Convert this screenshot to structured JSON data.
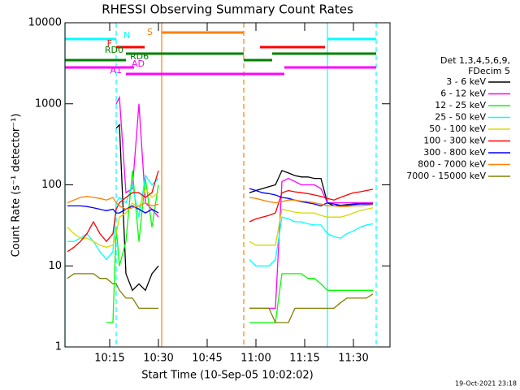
{
  "chart_data": {
    "type": "line",
    "title": "RHESSI Observing Summary Count Rates",
    "xlabel": "Start Time (10-Sep-05 10:02:02)",
    "ylabel": "Count Rate (s⁻¹ detector⁻¹)",
    "footer": "19-Oct-2021 23:18",
    "legend_title": [
      "Det 1,3,4,5,6,9,",
      "FDecim 5"
    ],
    "legend": "right",
    "ylog": true,
    "xlim": [
      1.25,
      101.25
    ],
    "xticks": [
      {
        "value": 15,
        "label": "10:15"
      },
      {
        "value": 30,
        "label": "10:30"
      },
      {
        "value": 45,
        "label": "10:45"
      },
      {
        "value": 60,
        "label": "11:00"
      },
      {
        "value": 75,
        "label": "11:15"
      },
      {
        "value": 90,
        "label": "11:30"
      }
    ],
    "ylim": [
      1,
      10000
    ],
    "yticks": [
      1,
      10,
      100,
      1000,
      10000
    ],
    "x": [
      2,
      4,
      6,
      8,
      10,
      12,
      14,
      16,
      17,
      18,
      20,
      22,
      24,
      26,
      28,
      30,
      44,
      58,
      60,
      62,
      64,
      66,
      68,
      70,
      72,
      74,
      76,
      78,
      80,
      82,
      84,
      86,
      88,
      90,
      92,
      94,
      96
    ],
    "series": [
      {
        "name": "3 - 6 keV",
        "color": "#000000",
        "values": [
          null,
          null,
          null,
          null,
          null,
          null,
          null,
          null,
          500,
          550,
          8,
          5,
          6,
          5,
          8,
          10,
          null,
          80,
          85,
          90,
          95,
          100,
          150,
          140,
          130,
          125,
          125,
          120,
          120,
          60,
          55,
          56,
          57,
          58,
          59,
          60,
          60
        ]
      },
      {
        "name": "6 - 12 keV",
        "color": "#ff00ff",
        "values": [
          null,
          null,
          null,
          null,
          null,
          null,
          null,
          null,
          1000,
          1200,
          80,
          90,
          1000,
          60,
          50,
          40,
          null,
          3,
          3,
          3,
          3,
          3,
          110,
          120,
          110,
          100,
          100,
          100,
          90,
          60,
          60,
          60,
          60,
          60,
          60,
          60,
          60
        ]
      },
      {
        "name": "12 - 25 keV",
        "color": "#00ff00",
        "values": [
          null,
          null,
          null,
          null,
          null,
          null,
          2,
          2,
          30,
          10,
          20,
          150,
          20,
          120,
          30,
          100,
          null,
          2,
          2,
          2,
          2,
          2,
          8,
          8,
          8,
          8,
          7,
          7,
          6,
          5,
          5,
          5,
          5,
          5,
          5,
          5,
          5
        ]
      },
      {
        "name": "25 - 50 keV",
        "color": "#00ffff",
        "values": [
          20,
          20,
          22,
          25,
          20,
          15,
          12,
          15,
          60,
          70,
          60,
          100,
          40,
          130,
          100,
          120,
          null,
          12,
          10,
          10,
          10,
          12,
          40,
          38,
          35,
          35,
          33,
          32,
          32,
          25,
          23,
          22,
          25,
          27,
          30,
          32,
          33
        ]
      },
      {
        "name": "50 - 100 keV",
        "color": "#d8d800",
        "values": [
          30,
          25,
          22,
          22,
          20,
          18,
          17,
          18,
          25,
          40,
          45,
          60,
          50,
          90,
          70,
          80,
          null,
          20,
          18,
          18,
          18,
          18,
          50,
          48,
          46,
          45,
          45,
          45,
          42,
          40,
          40,
          40,
          42,
          45,
          48,
          50,
          52
        ]
      },
      {
        "name": "100 - 300 keV",
        "color": "#ff0000",
        "values": [
          15,
          17,
          20,
          25,
          35,
          25,
          20,
          25,
          50,
          60,
          70,
          80,
          80,
          70,
          80,
          150,
          null,
          35,
          38,
          40,
          42,
          45,
          80,
          85,
          82,
          80,
          78,
          75,
          72,
          68,
          65,
          70,
          75,
          80,
          82,
          85,
          88
        ]
      },
      {
        "name": "300 - 800 keV",
        "color": "#0000ff",
        "values": [
          55,
          55,
          55,
          54,
          52,
          50,
          48,
          50,
          45,
          45,
          50,
          55,
          50,
          45,
          50,
          45,
          null,
          90,
          85,
          80,
          78,
          75,
          70,
          68,
          65,
          62,
          60,
          58,
          55,
          60,
          58,
          56,
          56,
          57,
          58,
          58,
          58
        ]
      },
      {
        "name": "800 - 7000 keV",
        "color": "#ff8000",
        "values": [
          60,
          65,
          70,
          72,
          70,
          68,
          65,
          70,
          60,
          55,
          50,
          52,
          55,
          60,
          55,
          58,
          null,
          70,
          68,
          65,
          62,
          60,
          62,
          65,
          65,
          63,
          62,
          60,
          58,
          55,
          55,
          54,
          54,
          55,
          55,
          56,
          57
        ]
      },
      {
        "name": "7000 - 15000 keV",
        "color": "#808000",
        "values": [
          7,
          8,
          8,
          8,
          8,
          7,
          7,
          6,
          6,
          5,
          4,
          4,
          3,
          3,
          3,
          3,
          null,
          3,
          3,
          3,
          3,
          2,
          2,
          2,
          3,
          3,
          3,
          3,
          3,
          3,
          3,
          3.5,
          4,
          4,
          4,
          4,
          4.5
        ]
      }
    ],
    "flags": [
      {
        "label": "N",
        "color": "#00ffff",
        "segments": [
          [
            1.25,
            17
          ],
          [
            82,
            97
          ]
        ]
      },
      {
        "label": "S",
        "color": "#ff8000",
        "segments": [
          [
            31,
            56.25
          ]
        ]
      },
      {
        "label": "F",
        "color": "#ff0000",
        "segments": [
          [
            17,
            25.75
          ],
          [
            61.25,
            81.25
          ]
        ]
      },
      {
        "label": "RD0",
        "color": "#008000",
        "segments": [
          [
            20,
            56.25
          ],
          [
            65,
            97
          ]
        ]
      },
      {
        "label": "RD6",
        "color": "#008000",
        "segments": [
          [
            1.25,
            20
          ],
          [
            56.25,
            65
          ]
        ]
      },
      {
        "label": "AD",
        "color": "#ff00ff",
        "segments": [
          [
            1.25,
            22.5
          ],
          [
            68.75,
            97
          ]
        ]
      },
      {
        "label": "A1",
        "color": "#ff00ff",
        "segments": [
          [
            20,
            68.75
          ]
        ]
      }
    ]
  }
}
